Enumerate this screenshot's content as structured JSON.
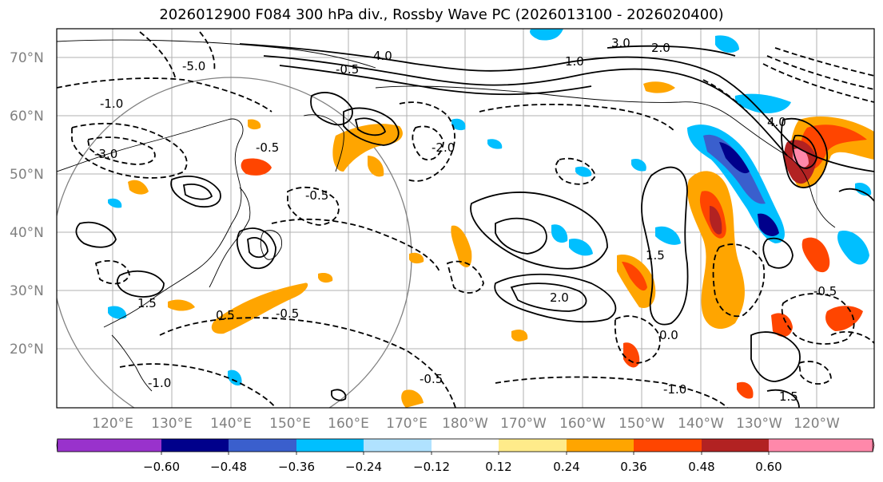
{
  "title": "2026012900 F084 300 hPa div., Rossby Wave PC (2026013100 - 2026020400)",
  "lat_labels": [
    "70°N",
    "60°N",
    "50°N",
    "40°N",
    "30°N",
    "20°N"
  ],
  "lon_labels": [
    "120°E",
    "130°E",
    "140°E",
    "150°E",
    "160°E",
    "170°E",
    "180°W",
    "170°W",
    "160°W",
    "150°W",
    "140°W",
    "130°W",
    "120°W"
  ],
  "colorbar": {
    "ticks": [
      "−0.60",
      "−0.48",
      "−0.36",
      "−0.24",
      "−0.12",
      "0.12",
      "0.24",
      "0.36",
      "0.48",
      "0.60"
    ],
    "colors": [
      "#9932cc",
      "#00008b",
      "#3a5fcd",
      "#00bfff",
      "#b0e2ff",
      "#ffffff",
      "#ffeb8a",
      "#ffa500",
      "#ff4500",
      "#b22222",
      "#ff88aa"
    ]
  },
  "contour_labels": [
    {
      "text": "3.0"
    },
    {
      "text": "2.0"
    },
    {
      "text": "1.0"
    },
    {
      "text": "4.0"
    },
    {
      "text": "-0.5"
    },
    {
      "text": "-5.0"
    },
    {
      "text": "-1.0"
    },
    {
      "text": "-0.5"
    },
    {
      "text": "-3.0"
    },
    {
      "text": "1.5"
    },
    {
      "text": "-0.5"
    },
    {
      "text": "0.5"
    },
    {
      "text": "-0.5"
    },
    {
      "text": "-1.0"
    },
    {
      "text": "2.0"
    },
    {
      "text": "-0.5"
    },
    {
      "text": "-2.0"
    },
    {
      "text": "4.0"
    },
    {
      "text": "1.5"
    },
    {
      "text": "0.0"
    },
    {
      "text": "-1.0"
    },
    {
      "text": "1.5"
    },
    {
      "text": "-0.5"
    }
  ]
}
